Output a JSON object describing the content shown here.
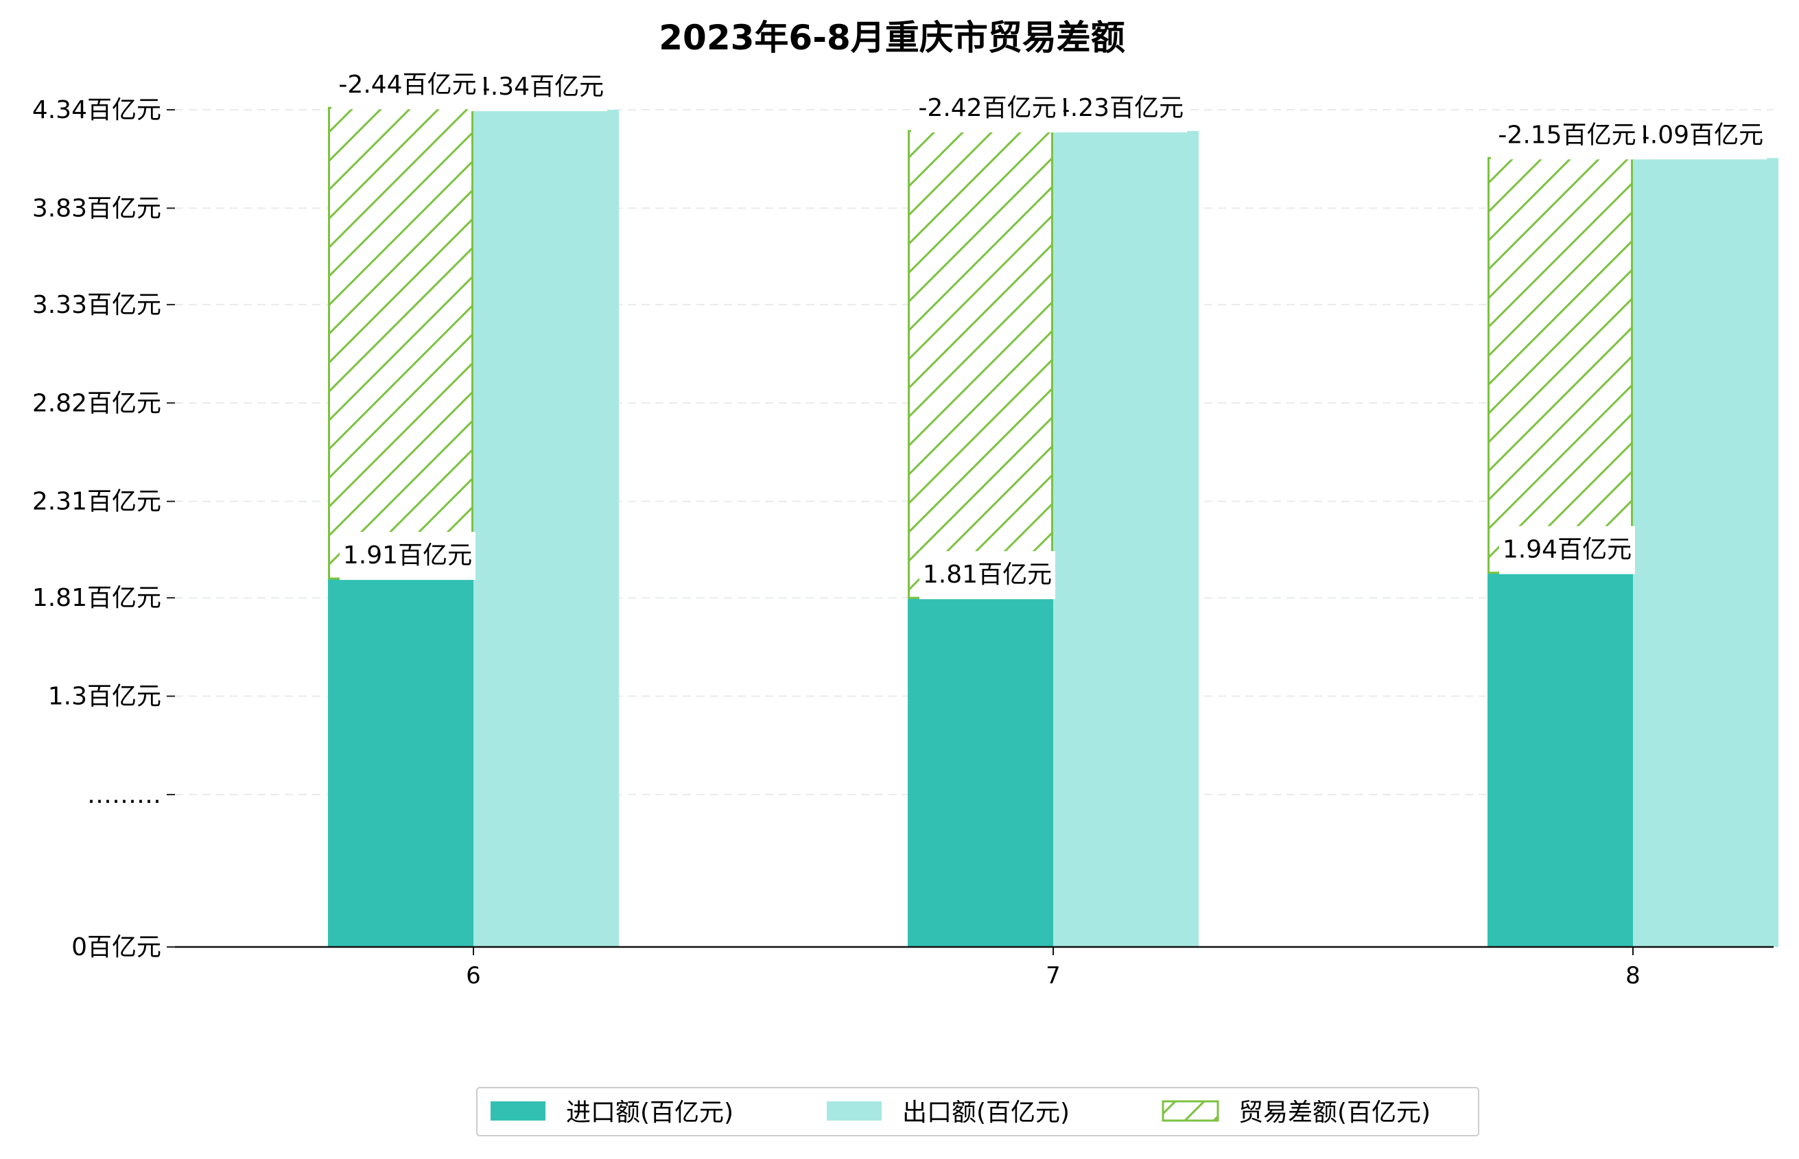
{
  "chart_data": {
    "type": "bar",
    "title": "2023年6-8月重庆市贸易差额",
    "xlabel": "",
    "ylabel": "",
    "categories": [
      "6",
      "7",
      "8"
    ],
    "series": [
      {
        "name": "进口额(百亿元)",
        "values": [
          1.91,
          1.81,
          1.94
        ],
        "labels": [
          "1.91百亿元",
          "1.81百亿元",
          "1.94百亿元"
        ],
        "color": "#32C0B3"
      },
      {
        "name": "出口额(百亿元)",
        "values": [
          4.34,
          4.23,
          4.09
        ],
        "labels": [
          "4.34百亿元",
          "4.23百亿元",
          "4.09百亿元"
        ],
        "color": "#A8E8E2"
      },
      {
        "name": "贸易差额(百亿元)",
        "values": [
          -2.44,
          -2.42,
          -2.15
        ],
        "labels": [
          "-2.44百亿元",
          "-2.42百亿元",
          "-2.15百亿元"
        ],
        "color": "#7DC242",
        "pattern": "hatch",
        "stacked_on": "进口额(百亿元)"
      }
    ],
    "yticks": [
      {
        "value": 0,
        "label": "0百亿元"
      },
      {
        "value": 0.79,
        "label": "………"
      },
      {
        "value": 1.3,
        "label": "1.3百亿元"
      },
      {
        "value": 1.81,
        "label": "1.81百亿元"
      },
      {
        "value": 2.31,
        "label": "2.31百亿元"
      },
      {
        "value": 2.82,
        "label": "2.82百亿元"
      },
      {
        "value": 3.33,
        "label": "3.33百亿元"
      },
      {
        "value": 3.83,
        "label": "3.83百亿元"
      },
      {
        "value": 4.34,
        "label": "4.34百亿元"
      }
    ],
    "ylim": [
      0,
      4.34
    ],
    "grid": true,
    "legend_position": "bottom-center"
  }
}
